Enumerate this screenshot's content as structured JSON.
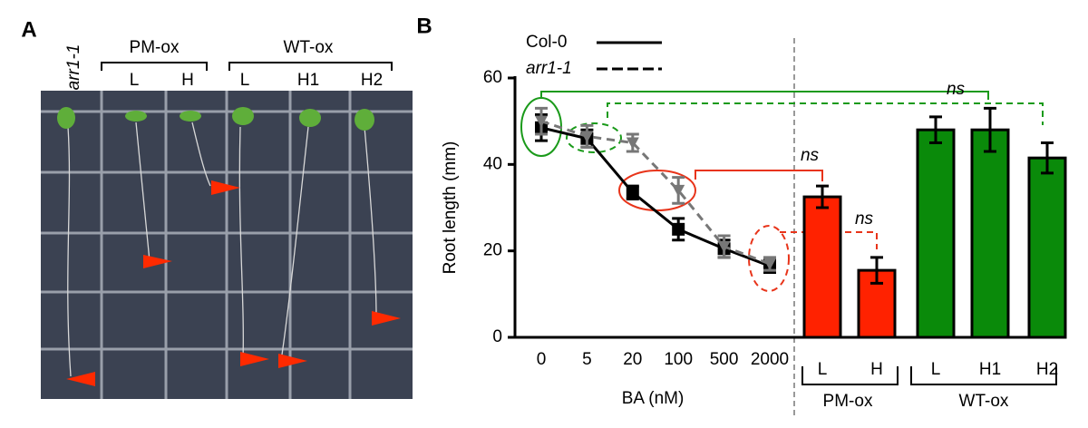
{
  "panel_a": {
    "label": "A",
    "control": "arr1-1",
    "groups": [
      {
        "name": "PM-ox",
        "lines": [
          "L",
          "H"
        ]
      },
      {
        "name": "WT-ox",
        "lines": [
          "L",
          "H1",
          "H2"
        ]
      }
    ]
  },
  "panel_b_label": "B",
  "chart_data": [
    {
      "type": "line",
      "ylabel": "Root length (mm)",
      "xlabel": "BA (nM)",
      "categories": [
        "0",
        "5",
        "20",
        "100",
        "500",
        "2000"
      ],
      "ylim": [
        0,
        60
      ],
      "yticks": [
        0,
        20,
        40,
        60
      ],
      "series": [
        {
          "name": "Col-0",
          "color": "#000000",
          "dash": false,
          "marker": "square",
          "values": [
            48.5,
            46,
            33.5,
            25,
            20.5,
            16.5
          ],
          "errors": [
            3,
            2,
            1.5,
            2.5,
            2,
            1.5
          ]
        },
        {
          "name": "arr1-1",
          "color": "#777777",
          "dash": true,
          "marker": "triangle",
          "values": [
            50,
            46.5,
            45,
            34,
            21,
            17
          ],
          "errors": [
            3,
            2.5,
            2,
            3,
            2.5,
            1.5
          ]
        }
      ]
    },
    {
      "type": "bar",
      "ylim": [
        0,
        60
      ],
      "annotations": [
        "ns",
        "ns",
        "ns"
      ],
      "series": [
        {
          "name": "PM-ox",
          "color": "#ff2200",
          "categories": [
            "L",
            "H"
          ],
          "values": [
            32.5,
            15.5
          ],
          "errors": [
            2.5,
            3
          ]
        },
        {
          "name": "WT-ox",
          "color": "#0a8a0a",
          "categories": [
            "L",
            "H1",
            "H2"
          ],
          "values": [
            48,
            48,
            41.5
          ],
          "errors": [
            3,
            5,
            3.5
          ]
        }
      ]
    }
  ]
}
